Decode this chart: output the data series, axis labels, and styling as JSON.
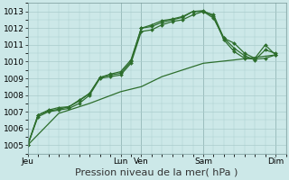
{
  "background_color": "#cce8e8",
  "plot_bg_color": "#cce8e8",
  "grid_color": "#aacccc",
  "line_color": "#2d6e2d",
  "ylim": [
    1004.5,
    1013.5
  ],
  "yticks": [
    1005,
    1006,
    1007,
    1008,
    1009,
    1010,
    1011,
    1012,
    1013
  ],
  "xlabel": "Pression niveau de la mer( hPa )",
  "xlabel_fontsize": 8,
  "tick_label_fontsize": 6.5,
  "day_labels": [
    "Jeu",
    "Lun",
    "Ven",
    "Sam",
    "Dim"
  ],
  "day_positions": [
    0,
    9,
    11,
    17,
    24
  ],
  "xlim": [
    0,
    25
  ],
  "series": [
    {
      "x": [
        0,
        3,
        6,
        9,
        11,
        13,
        17,
        20,
        24
      ],
      "y": [
        1005.0,
        1006.9,
        1007.5,
        1008.2,
        1008.5,
        1009.1,
        1009.9,
        1010.1,
        1010.4
      ],
      "has_markers": false,
      "linewidth": 0.9
    },
    {
      "x": [
        0,
        1,
        2,
        3,
        4,
        5,
        6,
        7,
        8,
        9,
        10,
        11,
        12,
        13,
        14,
        15,
        16,
        17,
        18,
        19,
        20,
        21,
        22,
        23,
        24
      ],
      "y": [
        1005.0,
        1006.7,
        1007.0,
        1007.1,
        1007.2,
        1007.5,
        1008.0,
        1009.0,
        1009.1,
        1009.2,
        1009.9,
        1011.8,
        1011.9,
        1012.2,
        1012.4,
        1012.5,
        1012.8,
        1013.0,
        1012.6,
        1011.4,
        1011.1,
        1010.5,
        1010.2,
        1011.0,
        1010.4
      ],
      "has_markers": true,
      "linewidth": 0.9
    },
    {
      "x": [
        0,
        1,
        2,
        3,
        4,
        5,
        6,
        7,
        8,
        9,
        10,
        11,
        12,
        13,
        14,
        15,
        16,
        17,
        18,
        19,
        20,
        21,
        22,
        23,
        24
      ],
      "y": [
        1005.0,
        1006.8,
        1007.05,
        1007.15,
        1007.3,
        1007.65,
        1008.1,
        1009.05,
        1009.2,
        1009.3,
        1010.0,
        1012.0,
        1012.1,
        1012.35,
        1012.5,
        1012.65,
        1013.0,
        1013.05,
        1012.7,
        1011.3,
        1010.6,
        1010.2,
        1010.15,
        1010.2,
        1010.4
      ],
      "has_markers": true,
      "linewidth": 0.9
    },
    {
      "x": [
        0,
        1,
        2,
        3,
        4,
        5,
        6,
        7,
        8,
        9,
        10,
        11,
        12,
        13,
        14,
        15,
        16,
        17,
        18,
        19,
        20,
        21,
        22,
        23,
        24
      ],
      "y": [
        1005.0,
        1006.8,
        1007.1,
        1007.25,
        1007.3,
        1007.7,
        1008.1,
        1009.05,
        1009.25,
        1009.4,
        1010.1,
        1012.0,
        1012.2,
        1012.45,
        1012.55,
        1012.7,
        1013.0,
        1013.0,
        1012.8,
        1011.4,
        1010.8,
        1010.35,
        1010.1,
        1010.7,
        1010.5
      ],
      "has_markers": true,
      "linewidth": 0.9
    }
  ]
}
